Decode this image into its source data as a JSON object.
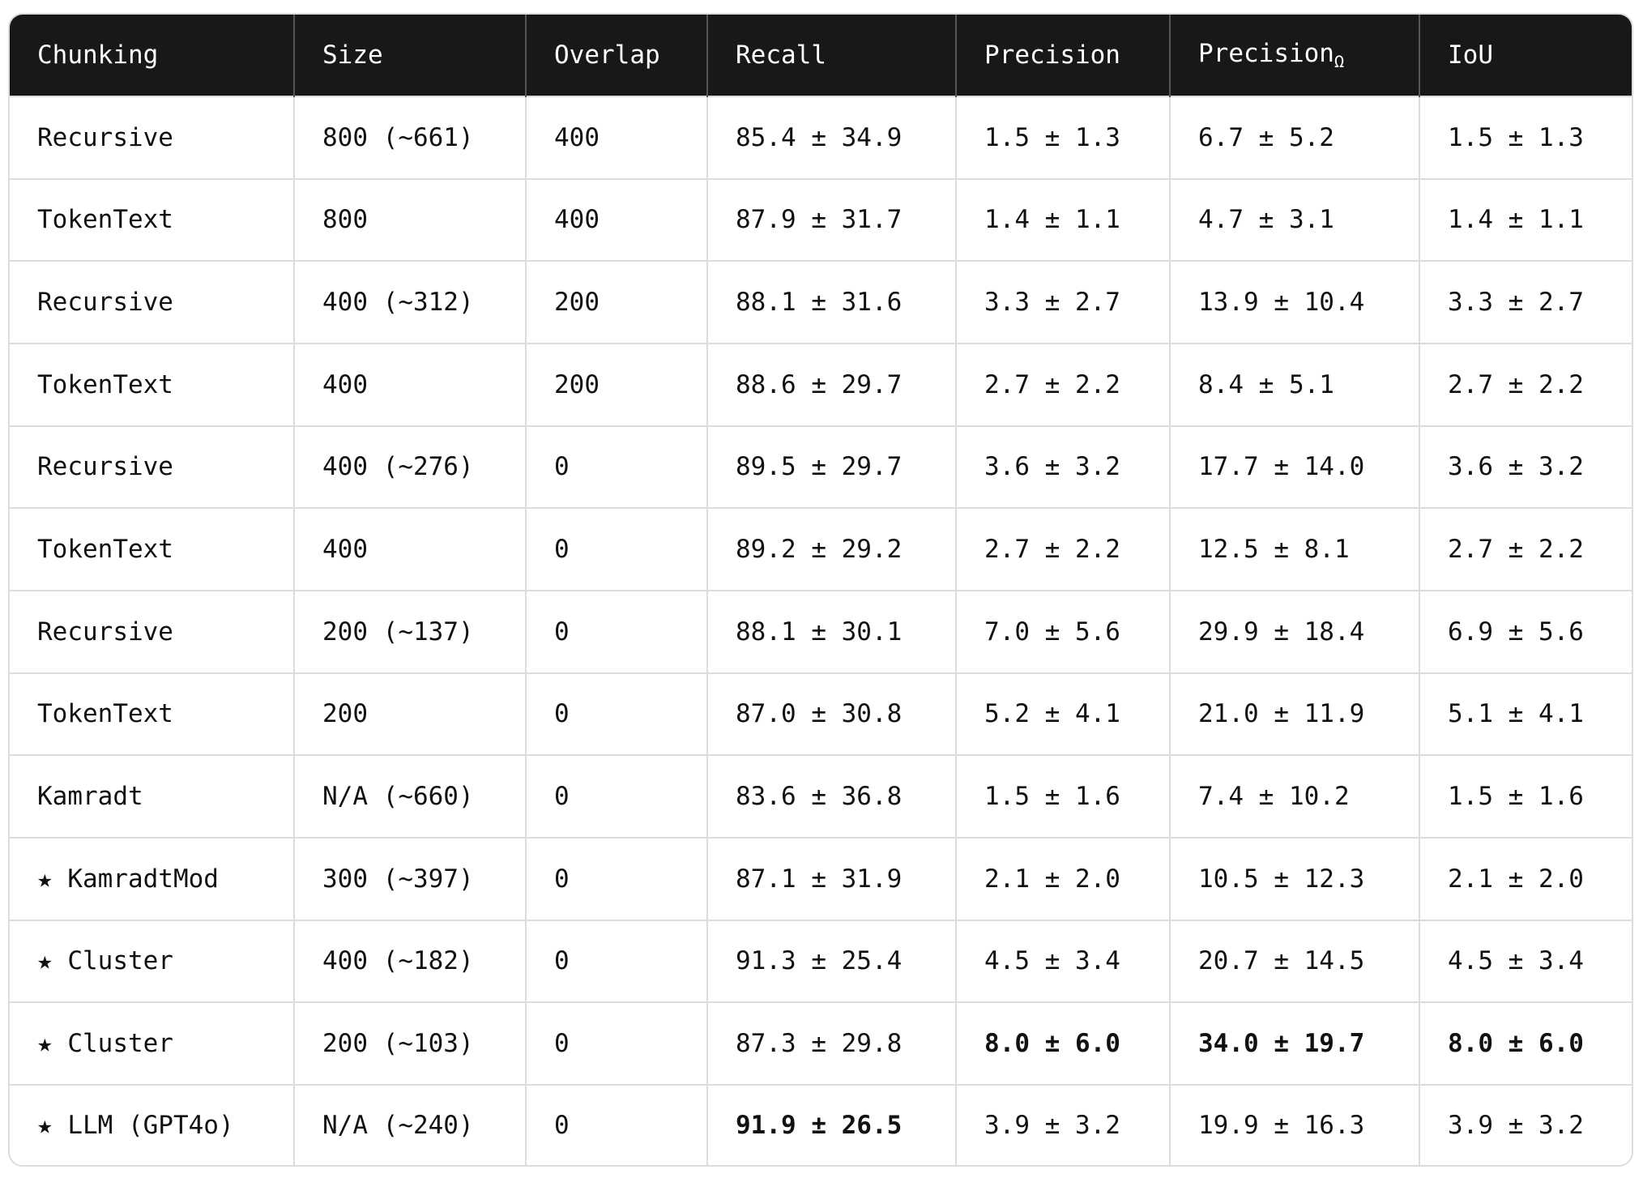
{
  "table": {
    "columns": [
      {
        "text": "Chunking"
      },
      {
        "text": "Size"
      },
      {
        "text": "Overlap"
      },
      {
        "text": "Recall"
      },
      {
        "text": "Precision"
      },
      {
        "text": "Precision",
        "subscript": "Ω"
      },
      {
        "text": "IoU"
      }
    ],
    "rows": [
      [
        "Recursive",
        "800 (~661)",
        "400",
        "85.4 ± 34.9",
        "1.5 ± 1.3",
        "6.7 ± 5.2",
        "1.5 ± 1.3"
      ],
      [
        "TokenText",
        "800",
        "400",
        "87.9 ± 31.7",
        "1.4 ± 1.1",
        "4.7 ± 3.1",
        "1.4 ± 1.1"
      ],
      [
        "Recursive",
        "400 (~312)",
        "200",
        "88.1 ± 31.6",
        "3.3 ± 2.7",
        "13.9 ± 10.4",
        "3.3 ± 2.7"
      ],
      [
        "TokenText",
        "400",
        "200",
        "88.6 ± 29.7",
        "2.7 ± 2.2",
        "8.4 ± 5.1",
        "2.7 ± 2.2"
      ],
      [
        "Recursive",
        "400 (~276)",
        "0",
        "89.5 ± 29.7",
        "3.6 ± 3.2",
        "17.7 ± 14.0",
        "3.6 ± 3.2"
      ],
      [
        "TokenText",
        "400",
        "0",
        "89.2 ± 29.2",
        "2.7 ± 2.2",
        "12.5 ± 8.1",
        "2.7 ± 2.2"
      ],
      [
        "Recursive",
        "200 (~137)",
        "0",
        "88.1 ± 30.1",
        "7.0 ± 5.6",
        "29.9 ± 18.4",
        "6.9 ± 5.6"
      ],
      [
        "TokenText",
        "200",
        "0",
        "87.0 ± 30.8",
        "5.2 ± 4.1",
        "21.0 ± 11.9",
        "5.1 ± 4.1"
      ],
      [
        "Kamradt",
        "N/A (~660)",
        "0",
        "83.6 ± 36.8",
        "1.5 ± 1.6",
        "7.4 ± 10.2",
        "1.5 ± 1.6"
      ],
      [
        "★ KamradtMod",
        "300 (~397)",
        "0",
        "87.1 ± 31.9",
        "2.1 ± 2.0",
        "10.5 ± 12.3",
        "2.1 ± 2.0"
      ],
      [
        "★ Cluster",
        "400 (~182)",
        "0",
        "91.3 ± 25.4",
        "4.5 ± 3.4",
        "20.7 ± 14.5",
        "4.5 ± 3.4"
      ],
      [
        "★ Cluster",
        "200 (~103)",
        "0",
        "87.3 ± 29.8",
        "8.0 ± 6.0",
        "34.0 ± 19.7",
        "8.0 ± 6.0"
      ],
      [
        "★ LLM (GPT4o)",
        "N/A (~240)",
        "0",
        "91.9 ± 26.5",
        "3.9 ± 3.2",
        "19.9 ± 16.3",
        "3.9 ± 3.2"
      ]
    ],
    "bold_cells": [
      [
        11,
        4
      ],
      [
        11,
        5
      ],
      [
        11,
        6
      ],
      [
        12,
        3
      ]
    ]
  }
}
